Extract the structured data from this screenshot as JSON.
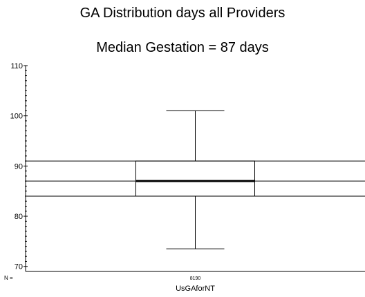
{
  "chart_data": {
    "type": "boxplot",
    "title": "GA Distribution days all Providers",
    "subtitle": "Median Gestation = 87 days",
    "ylim": [
      69,
      110
    ],
    "y_ticks": [
      70,
      80,
      90,
      100,
      110
    ],
    "n_label": "N =",
    "categories": [
      "UsGAforNT"
    ],
    "boxes": [
      {
        "category": "UsGAforNT",
        "n": "8190",
        "whisker_low": 73.5,
        "q1": 84,
        "median": 87,
        "q3": 91,
        "whisker_high": 101
      }
    ],
    "reference_lines": [
      84,
      87,
      91
    ],
    "grid": false
  }
}
